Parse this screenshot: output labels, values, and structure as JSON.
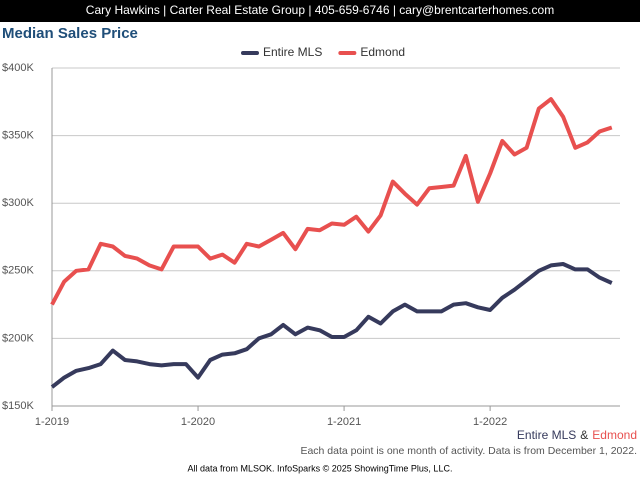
{
  "header": "Cary Hawkins | Carter Real Estate Group | 405-659-6746 | cary@brentcarterhomes.com",
  "chart_data": {
    "type": "line",
    "title": "Median Sales Price",
    "categories": [
      "1-2019",
      null,
      null,
      null,
      null,
      null,
      null,
      null,
      null,
      null,
      null,
      null,
      "1-2020",
      null,
      null,
      null,
      null,
      null,
      null,
      null,
      null,
      null,
      null,
      null,
      "1-2021",
      null,
      null,
      null,
      null,
      null,
      null,
      null,
      null,
      null,
      null,
      null,
      "1-2022",
      null,
      null,
      null,
      null,
      null,
      null,
      null,
      null,
      null,
      null
    ],
    "series": [
      {
        "name": "Entire MLS",
        "color": "#363a5c",
        "values": [
          164000,
          171000,
          176000,
          178000,
          181000,
          191000,
          184000,
          183000,
          181000,
          180000,
          181000,
          181000,
          171000,
          184000,
          188000,
          189000,
          192000,
          200000,
          203000,
          210000,
          203000,
          208000,
          206000,
          201000,
          201000,
          206000,
          216000,
          211000,
          220000,
          225000,
          220000,
          220000,
          220000,
          225000,
          226000,
          223000,
          221000,
          230000,
          236000,
          243000,
          250000,
          254000,
          255000,
          251000,
          251000,
          245000,
          241000
        ]
      },
      {
        "name": "Edmond",
        "color": "#e8504f",
        "values": [
          225000,
          242000,
          250000,
          251000,
          270000,
          268000,
          261000,
          259000,
          254000,
          251000,
          268000,
          268000,
          268000,
          259000,
          262000,
          256000,
          270000,
          268000,
          273000,
          278000,
          266000,
          281000,
          280000,
          285000,
          284000,
          290000,
          279000,
          291000,
          316000,
          307000,
          299000,
          311000,
          312000,
          313000,
          335000,
          301000,
          322000,
          346000,
          336000,
          341000,
          370000,
          377000,
          364000,
          341000,
          345000,
          353000,
          356000
        ]
      }
    ],
    "ylim": [
      150000,
      400000
    ],
    "yticks": [
      {
        "value": 150000,
        "label": "$150K"
      },
      {
        "value": 200000,
        "label": "$200K"
      },
      {
        "value": 250000,
        "label": "$250K"
      },
      {
        "value": 300000,
        "label": "$300K"
      },
      {
        "value": 350000,
        "label": "$350K"
      },
      {
        "value": 400000,
        "label": "$400K"
      }
    ],
    "grid": true,
    "legend": "top",
    "caption_joiner": "&",
    "note": "Each data point is one month of activity. Data is from December 1, 2022.",
    "credit": "All data from MLSOK. InfoSparks © 2025 ShowingTime Plus, LLC."
  }
}
